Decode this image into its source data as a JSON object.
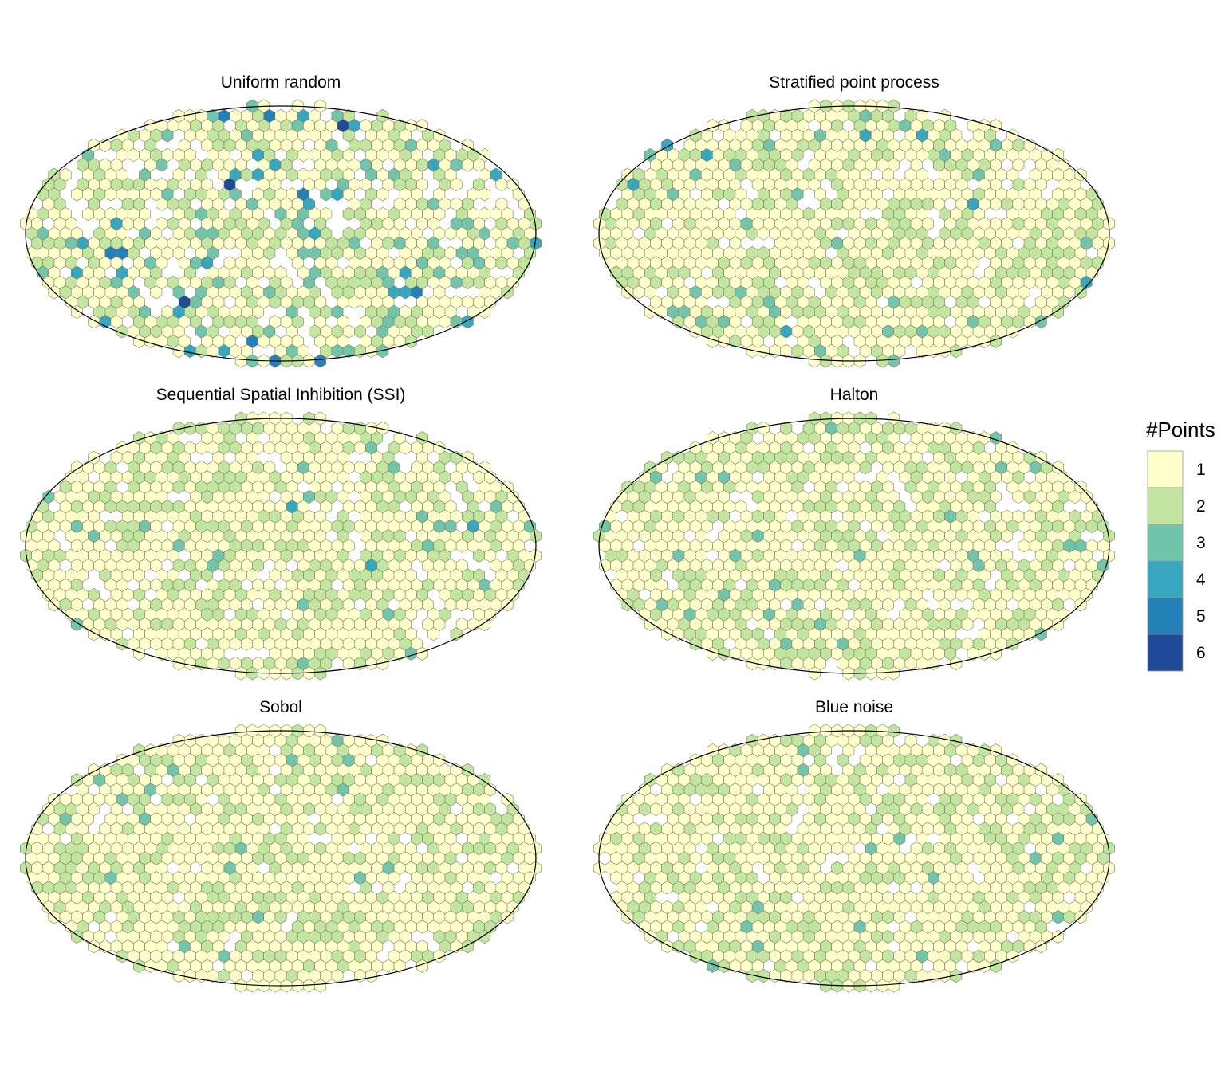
{
  "chart_data": [
    {
      "type": "heatmap",
      "title": "Uniform random",
      "projection": "mollweide",
      "distribution": {
        "1": 0.56,
        "2": 0.29,
        "3": 0.09,
        "4": 0.035,
        "5": 0.015,
        "6": 0.007
      },
      "empty_fraction": 0.18
    },
    {
      "type": "heatmap",
      "title": "Stratified point process",
      "projection": "mollweide",
      "distribution": {
        "1": 0.69,
        "2": 0.27,
        "3": 0.035,
        "4": 0.005,
        "5": 0.0,
        "6": 0.0
      },
      "empty_fraction": 0.1
    },
    {
      "type": "heatmap",
      "title": "Sequential Spatial Inhibition (SSI)",
      "projection": "mollweide",
      "distribution": {
        "1": 0.68,
        "2": 0.28,
        "3": 0.035,
        "4": 0.005,
        "5": 0.0,
        "6": 0.0
      },
      "empty_fraction": 0.12
    },
    {
      "type": "heatmap",
      "title": "Halton",
      "projection": "mollweide",
      "distribution": {
        "1": 0.7,
        "2": 0.27,
        "3": 0.03,
        "4": 0.0,
        "5": 0.0,
        "6": 0.0
      },
      "empty_fraction": 0.08
    },
    {
      "type": "heatmap",
      "title": "Sobol",
      "projection": "mollweide",
      "distribution": {
        "1": 0.7,
        "2": 0.27,
        "3": 0.03,
        "4": 0.0,
        "5": 0.0,
        "6": 0.0
      },
      "empty_fraction": 0.09
    },
    {
      "type": "heatmap",
      "title": "Blue noise",
      "projection": "mollweide",
      "distribution": {
        "1": 0.71,
        "2": 0.265,
        "3": 0.025,
        "4": 0.0,
        "5": 0.0,
        "6": 0.0
      },
      "empty_fraction": 0.08
    }
  ],
  "legend": {
    "title": "#Points",
    "placement": "right",
    "items": [
      {
        "label": "1",
        "color": "#ffffcc"
      },
      {
        "label": "2",
        "color": "#c2e5a0"
      },
      {
        "label": "3",
        "color": "#72c4aa"
      },
      {
        "label": "4",
        "color": "#37a6bf"
      },
      {
        "label": "5",
        "color": "#2380b8"
      },
      {
        "label": "6",
        "color": "#1f4a98"
      }
    ]
  }
}
